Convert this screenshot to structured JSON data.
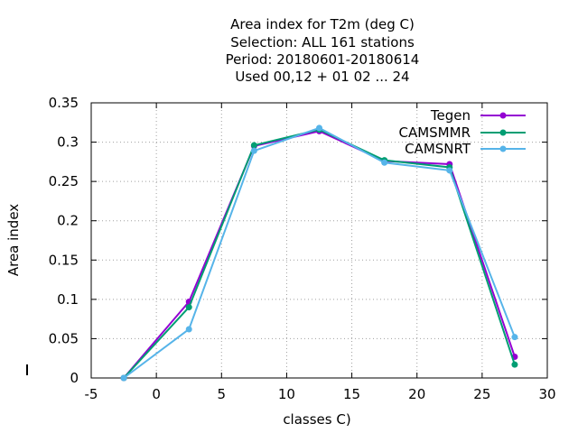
{
  "chart_data": {
    "type": "line",
    "title": [
      "Area index  for T2m (deg C)",
      "Selection: ALL    161 stations",
      "Period: 20180601-20180614",
      "Used  00,12  + 01 02 ... 24"
    ],
    "xlabel": "classes C)",
    "ylabel": "Area index",
    "xlim": [
      -5,
      30
    ],
    "ylim": [
      0,
      0.35
    ],
    "xticks": [
      -5,
      0,
      5,
      10,
      15,
      20,
      25,
      30
    ],
    "xtick_labels": [
      "-5",
      "0",
      "5",
      "10",
      "15",
      "20",
      "25",
      "30"
    ],
    "yticks": [
      0,
      0.05,
      0.1,
      0.15,
      0.2,
      0.25,
      0.3,
      0.35
    ],
    "ytick_labels": [
      "0",
      "0.05",
      "0.1",
      "0.15",
      "0.2",
      "0.25",
      "0.3",
      "0.35"
    ],
    "grid": true,
    "legend_position": "top-right",
    "x": [
      -2.5,
      2.5,
      7.5,
      12.5,
      17.5,
      22.5,
      27.5
    ],
    "series": [
      {
        "name": "Tegen",
        "color": "#9400d3",
        "values": [
          0.0,
          0.097,
          0.295,
          0.314,
          0.276,
          0.272,
          0.027
        ]
      },
      {
        "name": "CAMSMMR",
        "color": "#009e73",
        "values": [
          0.0,
          0.09,
          0.296,
          0.316,
          0.277,
          0.268,
          0.017
        ]
      },
      {
        "name": "CAMSNRT",
        "color": "#56b4e9",
        "values": [
          0.0,
          0.062,
          0.289,
          0.318,
          0.274,
          0.264,
          0.052
        ]
      }
    ]
  }
}
